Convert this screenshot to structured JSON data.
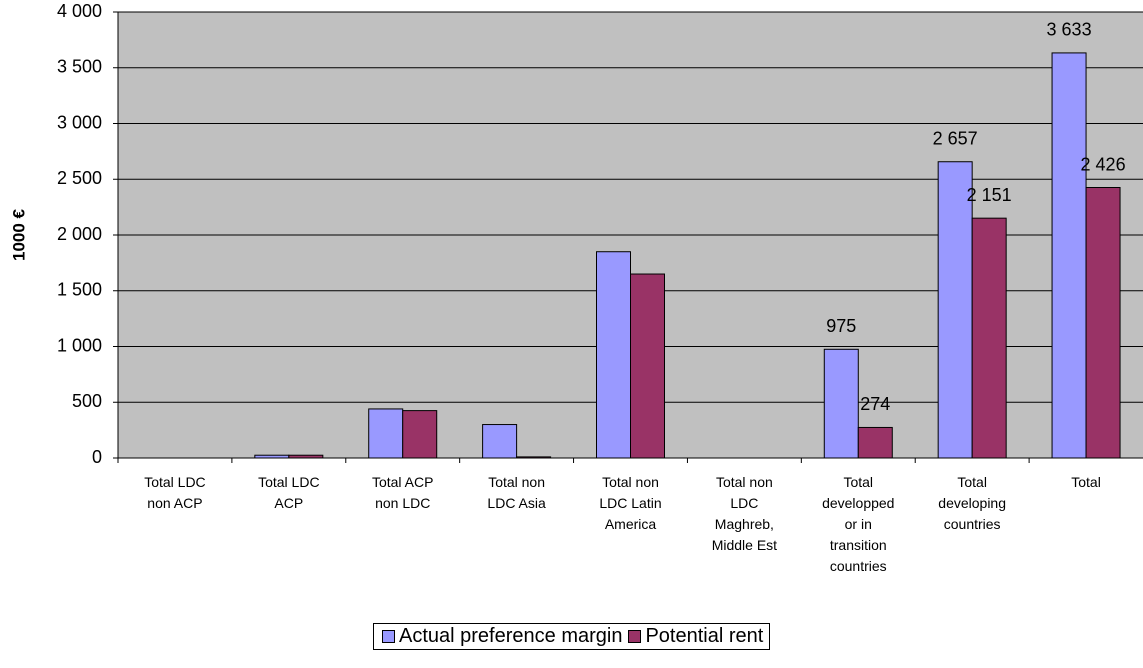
{
  "chart_data": {
    "type": "bar",
    "y_label": "1000 €",
    "categories": [
      "Total LDC non ACP",
      "Total LDC ACP",
      "Total ACP non LDC",
      "Total non LDC Asia",
      "Total non LDC Latin America",
      "Total non LDC Maghreb, Middle Est",
      "Total developped or in transition countries",
      "Total developing countries",
      "Total"
    ],
    "series": [
      {
        "name": "Actual preference margin",
        "color": "#9999ff",
        "values": [
          0,
          25,
          440,
          300,
          1850,
          0,
          975,
          2657,
          3633
        ],
        "value_labels": [
          null,
          null,
          null,
          null,
          null,
          null,
          "975",
          "2 657",
          "3 633"
        ]
      },
      {
        "name": "Potential rent",
        "color": "#993366",
        "values": [
          0,
          25,
          425,
          10,
          1650,
          0,
          274,
          2151,
          2426
        ],
        "value_labels": [
          null,
          null,
          null,
          null,
          null,
          null,
          "274",
          "2 151",
          "2 426"
        ]
      }
    ],
    "ylim": [
      0,
      4000
    ],
    "yticks": [
      0,
      500,
      {
        "value": 1000,
        "label": "1 000"
      },
      {
        "value": 1500,
        "label": "1 500"
      },
      {
        "value": 2000,
        "label": "2 000"
      },
      {
        "value": 2500,
        "label": "2 500"
      },
      {
        "value": 3000,
        "label": "3 000"
      },
      {
        "value": 3500,
        "label": "3 500"
      },
      {
        "value": 4000,
        "label": "4 000"
      }
    ],
    "grid": true
  }
}
